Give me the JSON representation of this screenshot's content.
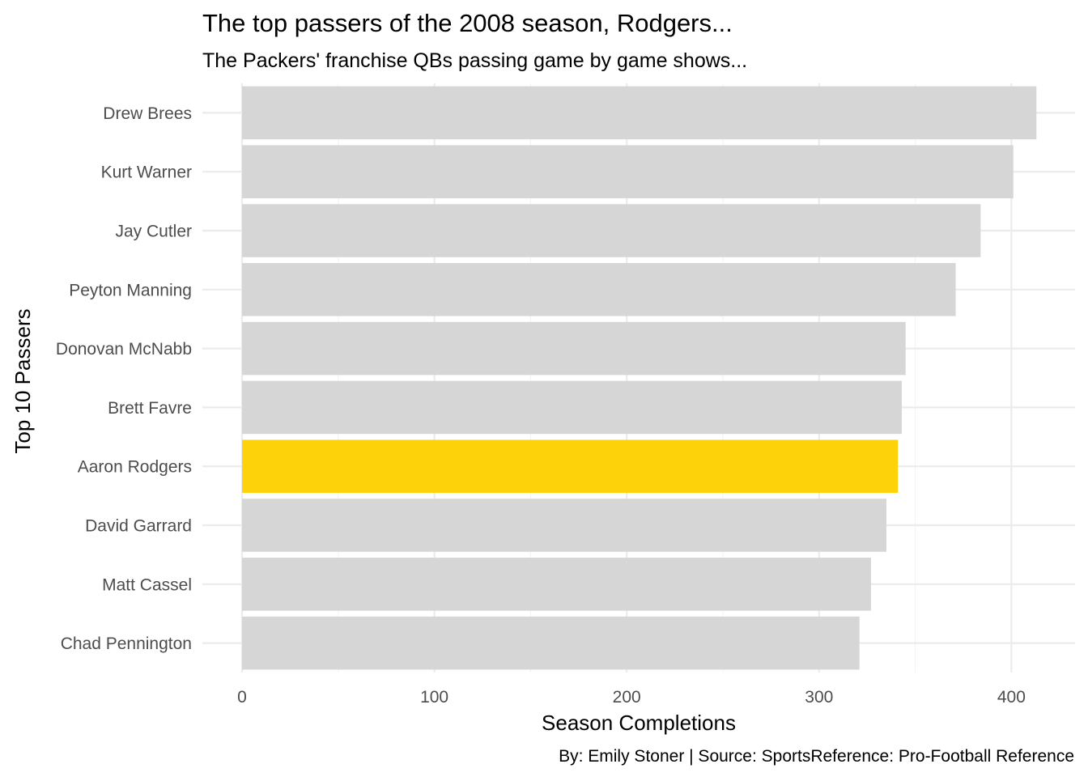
{
  "chart_data": {
    "type": "bar",
    "orientation": "horizontal",
    "title": "The top passers of the 2008 season, Rodgers...",
    "subtitle": "The Packers' franchise QBs passing game by game shows...",
    "xlabel": "Season Completions",
    "ylabel": "Top 10 Passers",
    "caption": "By: Emily Stoner | Source: SportsReference: Pro-Football Reference",
    "xlim": [
      0,
      430
    ],
    "x_ticks": [
      0,
      100,
      200,
      300,
      400
    ],
    "grid": true,
    "categories": [
      "Drew Brees",
      "Kurt Warner",
      "Jay Cutler",
      "Peyton Manning",
      "Donovan McNabb",
      "Brett Favre",
      "Aaron Rodgers",
      "David Garrard",
      "Matt Cassel",
      "Chad Pennington"
    ],
    "values": [
      413,
      401,
      384,
      371,
      345,
      343,
      341,
      335,
      327,
      321
    ],
    "highlight": "Aaron Rodgers",
    "colors": {
      "default_bar": "#d6d6d6",
      "highlight_bar": "#fed20b",
      "grid": "#ebebeb",
      "tick_text": "#4d4d4d"
    }
  }
}
